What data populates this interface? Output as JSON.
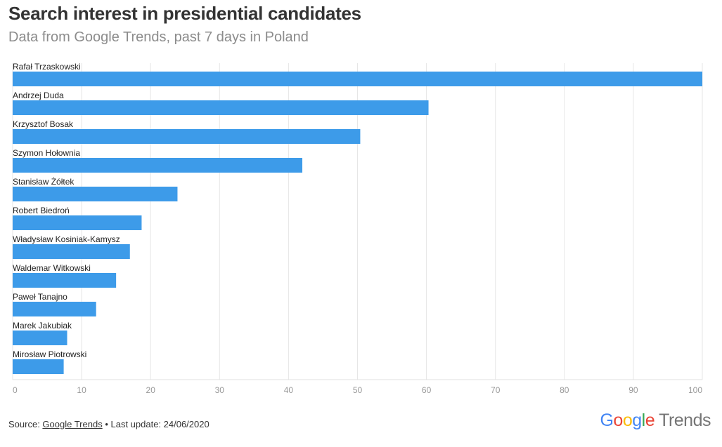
{
  "chart_data": {
    "type": "bar",
    "orientation": "horizontal",
    "title": "Search interest in presidential candidates",
    "subtitle": "Data from Google Trends, past 7 days in Poland",
    "xlim": [
      0,
      100
    ],
    "xticks": [
      0,
      10,
      20,
      30,
      40,
      50,
      60,
      70,
      80,
      90,
      100
    ],
    "grid": true,
    "categories": [
      "Rafał Trzaskowski",
      "Andrzej Duda",
      "Krzysztof Bosak",
      "Szymon Hołownia",
      "Stanisław Żółtek",
      "Robert Biedroń",
      "Władysław Kosiniak-Kamysz",
      "Waldemar Witkowski",
      "Paweł Tanajno",
      "Marek Jakubiak",
      "Mirosław Piotrowski"
    ],
    "values": [
      100,
      60.3,
      50.4,
      42,
      23.9,
      18.7,
      17,
      15,
      12.1,
      7.9,
      7.4
    ],
    "bar_color": "#3d9be9"
  },
  "footer": {
    "source_prefix": "Source: ",
    "source_link": "Google Trends",
    "last_update": " • Last update: 24/06/2020"
  },
  "logo": {
    "g1": "G",
    "o1": "o",
    "o2": "o",
    "g2": "g",
    "l": "l",
    "e": "e",
    "trends": "Trends"
  }
}
